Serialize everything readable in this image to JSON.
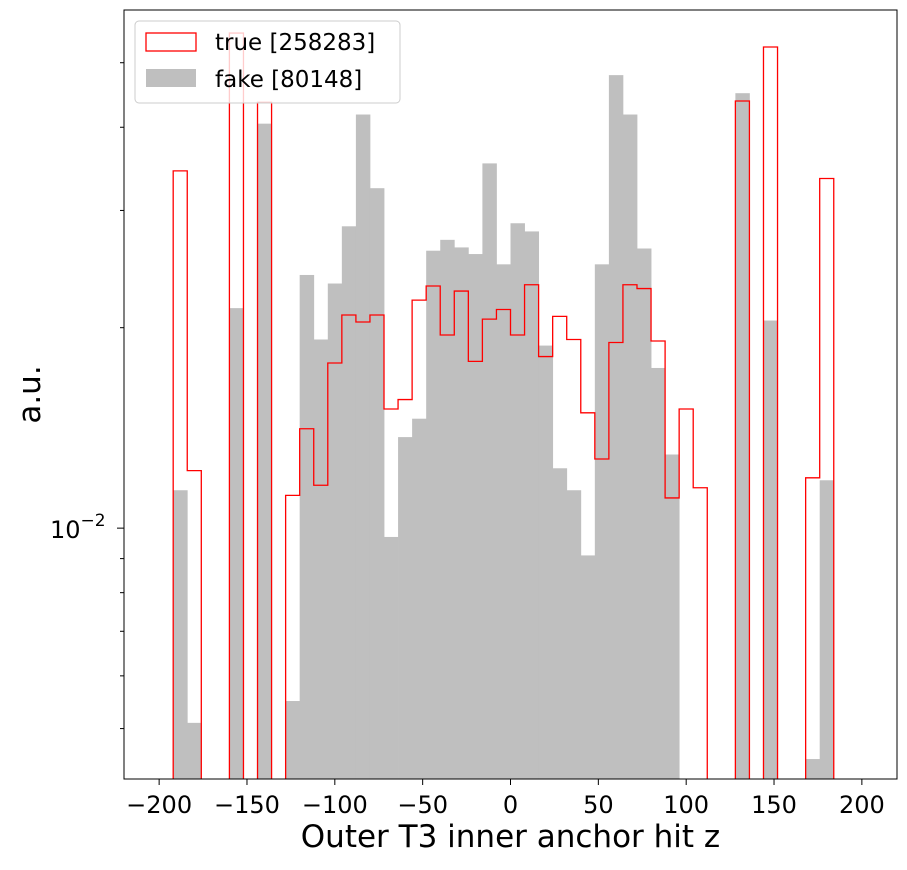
{
  "chart_data": {
    "type": "histogram",
    "xlabel": "Outer T3 inner anchor hit z",
    "ylabel": "a.u.",
    "xlim": [
      -220,
      220
    ],
    "ylim": [
      0.0042,
      0.06
    ],
    "yscale": "log",
    "x_ticks": [
      -200,
      -150,
      -100,
      -50,
      0,
      50,
      100,
      150,
      200
    ],
    "x_tick_labels": [
      "−200",
      "−150",
      "−100",
      "−50",
      "0",
      "50",
      "100",
      "150",
      "200"
    ],
    "y_ticks": [
      0.01
    ],
    "y_tick_labels": [
      {
        "base": "10",
        "exp": "−2"
      }
    ],
    "y_minor_ticks": [
      0.005,
      0.006,
      0.007,
      0.008,
      0.009,
      0.02,
      0.03,
      0.04,
      0.05
    ],
    "grid": false,
    "legend_position": "top-left",
    "bin_edges": [
      -200,
      -192,
      -184,
      -176,
      -168,
      -160,
      -152,
      -144,
      -136,
      -128,
      -120,
      -112,
      -104,
      -96,
      -88,
      -80,
      -72,
      -64,
      -56,
      -48,
      -40,
      -32,
      -24,
      -16,
      -8,
      0,
      8,
      16,
      24,
      32,
      40,
      48,
      56,
      64,
      72,
      80,
      88,
      96,
      104,
      112,
      120,
      128,
      136,
      144,
      152,
      160,
      168,
      176,
      184,
      192,
      200
    ],
    "series": [
      {
        "name": "true [258283]",
        "style": "step",
        "color": "#ff0000",
        "values": [
          0,
          0.0344,
          0.0122,
          0,
          0,
          0.0554,
          0,
          0.0436,
          0,
          0.0112,
          0.0141,
          0.0116,
          0.0177,
          0.0209,
          0.0204,
          0.0209,
          0.0151,
          0.0156,
          0.022,
          0.0231,
          0.0195,
          0.0227,
          0.0178,
          0.0206,
          0.0213,
          0.0195,
          0.0232,
          0.0181,
          0.0208,
          0.0192,
          0.0149,
          0.0127,
          0.019,
          0.0232,
          0.0229,
          0.0191,
          0.0111,
          0.0151,
          0.0115,
          0,
          0,
          0.0438,
          0,
          0.0528,
          0,
          0,
          0.0119,
          0.0335,
          0,
          0
        ]
      },
      {
        "name": "fake [80148]",
        "style": "filled",
        "color": "#bfbfbf",
        "values": [
          0,
          0.0114,
          0.0051,
          0,
          0,
          0.0214,
          0,
          0.0405,
          0,
          0.0055,
          0.024,
          0.0192,
          0.0233,
          0.0284,
          0.0418,
          0.0324,
          0.0097,
          0.0137,
          0.0146,
          0.0261,
          0.0271,
          0.0264,
          0.0258,
          0.0353,
          0.0249,
          0.0287,
          0.0279,
          0.0188,
          0.0123,
          0.0114,
          0.0091,
          0.0249,
          0.0479,
          0.0418,
          0.0263,
          0.0174,
          0.0129,
          0,
          0,
          0,
          0,
          0.045,
          0,
          0.0205,
          0,
          0,
          0.0045,
          0.0118,
          0,
          0
        ]
      }
    ]
  }
}
